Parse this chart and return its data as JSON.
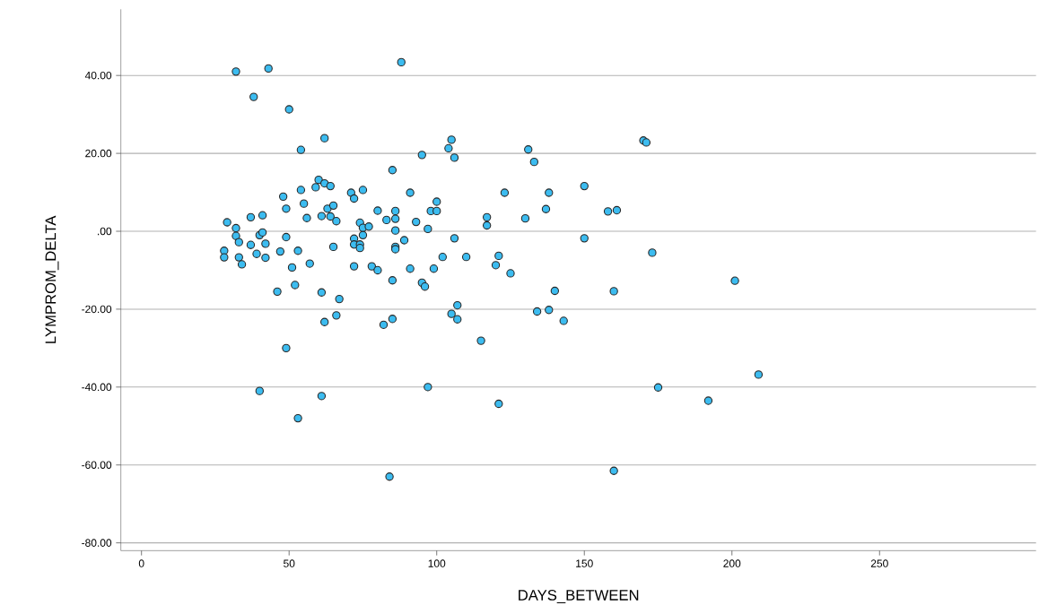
{
  "chart_data": {
    "type": "scatter",
    "xlabel": "DAYS_BETWEEN",
    "ylabel": "LYMPROM_DELTA",
    "color": "#3cbcf0",
    "grid": "y",
    "xlim": [
      -7,
      303
    ],
    "ylim": [
      -82,
      57
    ],
    "xticks": [
      0,
      50,
      100,
      150,
      200,
      250
    ],
    "yticks": [
      {
        "value": -80,
        "label": "-80.00"
      },
      {
        "value": -60,
        "label": "-60.00"
      },
      {
        "value": -40,
        "label": "-40.00"
      },
      {
        "value": -20,
        "label": "-20.00"
      },
      {
        "value": 0,
        "label": ".00"
      },
      {
        "value": 20,
        "label": "20.00"
      },
      {
        "value": 40,
        "label": "40.00"
      }
    ],
    "x": [
      29,
      28,
      28,
      32,
      32,
      32,
      33,
      33,
      34,
      37,
      37,
      38,
      39,
      40,
      40,
      41,
      41,
      42,
      42,
      43,
      46,
      47,
      48,
      49,
      49,
      49,
      50,
      51,
      52,
      53,
      53,
      54,
      54,
      55,
      56,
      57,
      59,
      60,
      61,
      61,
      61,
      62,
      62,
      62,
      63,
      64,
      64,
      65,
      65,
      66,
      66,
      67,
      71,
      72,
      72,
      72,
      72,
      74,
      74,
      74,
      75,
      75,
      75,
      77,
      78,
      80,
      80,
      82,
      83,
      84,
      85,
      85,
      85,
      86,
      86,
      86,
      86,
      86,
      88,
      89,
      91,
      91,
      93,
      95,
      95,
      96,
      97,
      97,
      98,
      99,
      100,
      100,
      102,
      104,
      105,
      105,
      106,
      106,
      107,
      107,
      110,
      115,
      117,
      117,
      120,
      121,
      121,
      123,
      125,
      130,
      131,
      133,
      134,
      137,
      138,
      138,
      140,
      143,
      150,
      150,
      158,
      160,
      160,
      161,
      170,
      171,
      173,
      175,
      192,
      201,
      209
    ],
    "values": [
      2.3,
      -5,
      -6.7,
      41,
      0.8,
      -1.2,
      -2.8,
      -6.7,
      -8.5,
      3.6,
      -3.5,
      34.5,
      -5.8,
      -1,
      -41,
      4.1,
      -0.3,
      -3.2,
      -6.8,
      41.8,
      -15.5,
      -5.2,
      8.9,
      5.8,
      -1.5,
      -30,
      31.3,
      -9.3,
      -13.8,
      -5,
      -48,
      20.9,
      10.6,
      7.1,
      3.4,
      -8.3,
      11.3,
      13.2,
      3.9,
      -15.7,
      -42.3,
      12.3,
      -23.3,
      23.9,
      5.8,
      11.6,
      3.8,
      6.6,
      -4,
      2.6,
      -21.6,
      -17.4,
      9.9,
      8.4,
      -1.9,
      -3.4,
      -9,
      2.2,
      -3.4,
      -4.3,
      10.6,
      0.9,
      -1,
      1.2,
      -9,
      5.3,
      -10,
      -24,
      2.9,
      -63,
      15.7,
      -12.6,
      -22.5,
      5.2,
      3.2,
      0.2,
      -4,
      -4.6,
      43.4,
      -2.3,
      9.9,
      -9.6,
      2.4,
      19.6,
      -13.2,
      -14.2,
      0.6,
      -40,
      5.2,
      -9.6,
      5.2,
      7.6,
      -6.6,
      21.3,
      23.5,
      -21.2,
      18.9,
      -1.8,
      -19,
      -22.6,
      -6.6,
      -28.1,
      3.6,
      1.5,
      -8.7,
      -6.3,
      -44.3,
      9.9,
      -10.8,
      3.3,
      21,
      17.8,
      -20.6,
      5.7,
      9.9,
      -20.2,
      -15.3,
      -23,
      11.6,
      -1.8,
      5.1,
      -15.4,
      -61.5,
      5.4,
      23.3,
      22.8,
      -5.5,
      -40.1,
      -43.5,
      -12.7,
      -36.8
    ]
  }
}
